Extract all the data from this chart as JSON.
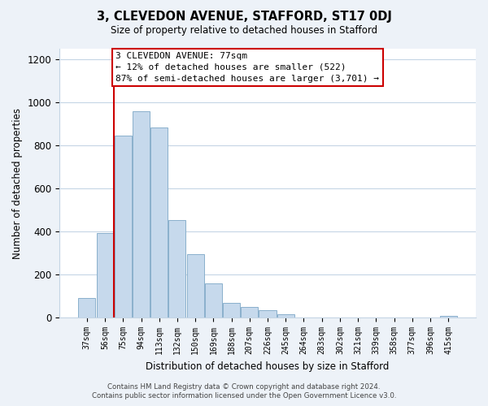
{
  "title": "3, CLEVEDON AVENUE, STAFFORD, ST17 0DJ",
  "subtitle": "Size of property relative to detached houses in Stafford",
  "xlabel": "Distribution of detached houses by size in Stafford",
  "ylabel": "Number of detached properties",
  "categories": [
    "37sqm",
    "56sqm",
    "75sqm",
    "94sqm",
    "113sqm",
    "132sqm",
    "150sqm",
    "169sqm",
    "188sqm",
    "207sqm",
    "226sqm",
    "245sqm",
    "264sqm",
    "283sqm",
    "302sqm",
    "321sqm",
    "339sqm",
    "358sqm",
    "377sqm",
    "396sqm",
    "415sqm"
  ],
  "values": [
    90,
    395,
    845,
    960,
    885,
    455,
    295,
    160,
    70,
    50,
    33,
    15,
    0,
    0,
    0,
    0,
    0,
    0,
    0,
    0,
    10
  ],
  "bar_color": "#c6d9ec",
  "bar_edge_color": "#8ab0cc",
  "highlight_color": "#cc0000",
  "annotation_line1": "3 CLEVEDON AVENUE: 77sqm",
  "annotation_line2": "← 12% of detached houses are smaller (522)",
  "annotation_line3": "87% of semi-detached houses are larger (3,701) →",
  "annotation_box_color": "#ffffff",
  "annotation_box_edge": "#cc0000",
  "ylim": [
    0,
    1250
  ],
  "yticks": [
    0,
    200,
    400,
    600,
    800,
    1000,
    1200
  ],
  "footer_line1": "Contains HM Land Registry data © Crown copyright and database right 2024.",
  "footer_line2": "Contains public sector information licensed under the Open Government Licence v3.0.",
  "bg_color": "#edf2f8",
  "plot_bg_color": "#ffffff",
  "grid_color": "#c5d5e5"
}
